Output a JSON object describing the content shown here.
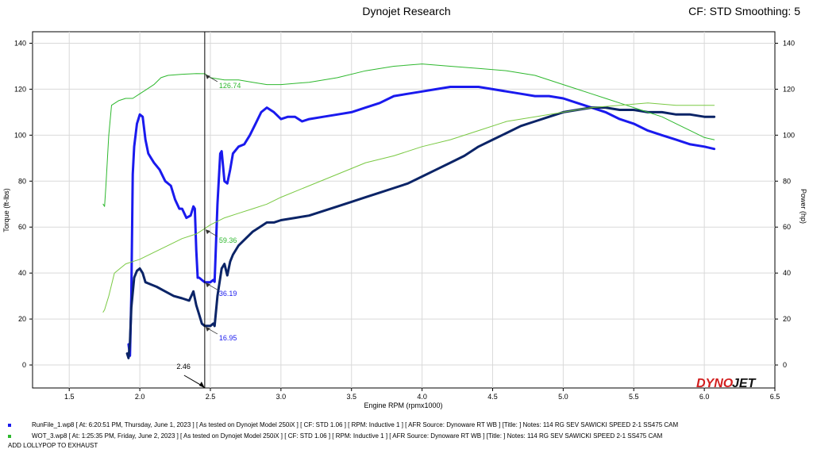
{
  "header": {
    "title": "Dynojet Research",
    "cf_info": "CF: STD Smoothing: 5"
  },
  "chart_data": {
    "type": "line",
    "xlabel": "Engine RPM (rpmx1000)",
    "ylabel_left": "Torque (ft-lbs)",
    "ylabel_right": "Power (hp)",
    "xlim": [
      1.24,
      6.5
    ],
    "ylim": [
      -10,
      145
    ],
    "x_ticks": [
      "1.5",
      "2.0",
      "2.5",
      "3.0",
      "3.5",
      "4.0",
      "4.5",
      "5.0",
      "5.5",
      "6.0",
      "6.5"
    ],
    "y_ticks": [
      "0",
      "20",
      "40",
      "60",
      "80",
      "100",
      "120",
      "140"
    ],
    "cursor": {
      "x": 2.46,
      "label": "2.46"
    },
    "series": [
      {
        "name": "RunFile_1.wp8",
        "role": "torque",
        "color": "#1a1aee",
        "width": 3,
        "x": [
          1.92,
          1.93,
          1.94,
          1.95,
          1.96,
          1.98,
          2.0,
          2.02,
          2.04,
          2.06,
          2.08,
          2.1,
          2.14,
          2.18,
          2.22,
          2.25,
          2.28,
          2.3,
          2.33,
          2.36,
          2.38,
          2.39,
          2.4,
          2.41,
          2.42,
          2.44,
          2.46,
          2.48,
          2.5,
          2.52,
          2.53,
          2.55,
          2.57,
          2.58,
          2.6,
          2.62,
          2.64,
          2.66,
          2.7,
          2.74,
          2.78,
          2.82,
          2.86,
          2.9,
          2.95,
          3.0,
          3.05,
          3.1,
          3.15,
          3.2,
          3.3,
          3.4,
          3.5,
          3.6,
          3.7,
          3.8,
          3.9,
          4.0,
          4.1,
          4.2,
          4.3,
          4.4,
          4.5,
          4.6,
          4.7,
          4.8,
          4.9,
          5.0,
          5.1,
          5.2,
          5.3,
          5.4,
          5.5,
          5.6,
          5.7,
          5.8,
          5.9,
          6.0,
          6.07
        ],
        "y": [
          9,
          4,
          30,
          83,
          95,
          105,
          109,
          108,
          98,
          92,
          90,
          88,
          85,
          80,
          78,
          72,
          68,
          68,
          64,
          65,
          69,
          68,
          50,
          38,
          38,
          37,
          36,
          36,
          36,
          37,
          36.19,
          70,
          92,
          93,
          80,
          79,
          85,
          92,
          95,
          96,
          100,
          105,
          110,
          112,
          110,
          107,
          108,
          108,
          106,
          107,
          108,
          109,
          110,
          112,
          114,
          117,
          118,
          119,
          120,
          121,
          121,
          121,
          120,
          119,
          118,
          117,
          117,
          116,
          114,
          112,
          110,
          107,
          105,
          102,
          100,
          98,
          96,
          95,
          94
        ]
      },
      {
        "name": "RunFile_1.wp8",
        "role": "power",
        "color": "#0b2467",
        "width": 3,
        "x": [
          1.91,
          1.92,
          1.93,
          1.94,
          1.96,
          1.98,
          2.0,
          2.02,
          2.04,
          2.08,
          2.12,
          2.18,
          2.24,
          2.3,
          2.35,
          2.38,
          2.4,
          2.42,
          2.44,
          2.46,
          2.48,
          2.5,
          2.52,
          2.53,
          2.55,
          2.58,
          2.6,
          2.62,
          2.64,
          2.66,
          2.7,
          2.75,
          2.8,
          2.85,
          2.9,
          2.95,
          3.0,
          3.1,
          3.2,
          3.3,
          3.4,
          3.5,
          3.6,
          3.7,
          3.8,
          3.9,
          4.0,
          4.1,
          4.2,
          4.3,
          4.4,
          4.5,
          4.6,
          4.7,
          4.8,
          4.9,
          5.0,
          5.1,
          5.2,
          5.3,
          5.4,
          5.5,
          5.6,
          5.7,
          5.8,
          5.9,
          6.0,
          6.07
        ],
        "y": [
          5,
          3,
          10,
          25,
          38,
          41,
          42,
          40,
          36,
          35,
          34,
          32,
          30,
          29,
          28,
          32,
          26,
          22,
          18,
          17,
          17,
          17,
          18,
          16.95,
          30,
          42,
          44,
          39,
          45,
          48,
          52,
          55,
          58,
          60,
          62,
          62,
          63,
          64,
          65,
          67,
          69,
          71,
          73,
          75,
          77,
          79,
          82,
          85,
          88,
          91,
          95,
          98,
          101,
          104,
          106,
          108,
          110,
          111,
          112,
          112,
          111,
          111,
          110,
          110,
          109,
          109,
          108,
          108
        ]
      },
      {
        "name": "WOT_3.wp8",
        "role": "torque",
        "color": "#2eb82e",
        "width": 1,
        "x": [
          1.74,
          1.75,
          1.76,
          1.78,
          1.8,
          1.85,
          1.9,
          1.95,
          2.0,
          2.05,
          2.1,
          2.15,
          2.2,
          2.3,
          2.4,
          2.46,
          2.5,
          2.6,
          2.7,
          2.8,
          2.9,
          3.0,
          3.2,
          3.4,
          3.6,
          3.8,
          4.0,
          4.2,
          4.4,
          4.6,
          4.8,
          5.0,
          5.1,
          5.2,
          5.3,
          5.4,
          5.5,
          5.6,
          5.7,
          5.8,
          5.9,
          6.0,
          6.07
        ],
        "y": [
          70,
          69,
          78,
          100,
          113,
          115,
          116,
          116,
          118,
          120,
          122,
          125,
          126,
          126.5,
          126.8,
          126.74,
          125,
          124,
          124,
          123,
          122,
          122,
          123,
          125,
          128,
          130,
          131,
          130,
          129,
          128,
          126,
          122,
          120,
          118,
          116,
          114,
          112,
          110,
          108,
          105,
          102,
          99,
          98
        ]
      },
      {
        "name": "WOT_3.wp8",
        "role": "power",
        "color": "#7ac943",
        "width": 1,
        "x": [
          1.74,
          1.75,
          1.78,
          1.82,
          1.86,
          1.9,
          1.95,
          2.0,
          2.1,
          2.2,
          2.3,
          2.4,
          2.46,
          2.5,
          2.6,
          2.7,
          2.8,
          2.9,
          3.0,
          3.2,
          3.4,
          3.6,
          3.8,
          4.0,
          4.2,
          4.4,
          4.6,
          4.8,
          5.0,
          5.2,
          5.4,
          5.6,
          5.8,
          6.0,
          6.07
        ],
        "y": [
          23,
          24,
          30,
          40,
          42,
          44,
          45,
          46,
          49,
          52,
          55,
          57,
          59.36,
          61,
          64,
          66,
          68,
          70,
          73,
          78,
          83,
          88,
          91,
          95,
          98,
          102,
          106,
          108,
          110,
          112,
          113,
          114,
          113,
          113,
          113
        ]
      }
    ],
    "annotations": [
      {
        "x": 2.46,
        "y": 126.74,
        "label": "126.74",
        "color": "#2eb82e"
      },
      {
        "x": 2.46,
        "y": 59.36,
        "label": "59.36",
        "color": "#2eb82e"
      },
      {
        "x": 2.46,
        "y": 36.19,
        "label": "36.19",
        "color": "#1a1aee"
      },
      {
        "x": 2.46,
        "y": 16.95,
        "label": "16.95",
        "color": "#1a1aee"
      }
    ]
  },
  "legend": {
    "items": [
      {
        "text": "RunFile_1.wp8 [ At: 6:20:51 PM, Thursday, June 1, 2023 ] [ As tested on Dynojet Model 250iX ] [ CF: STD 1.06 ] [ RPM: Inductive 1 ] [ AFR Source: Dynoware RT WB ] [Title: ]   Notes: 114 RG SEV SAWICKI SPEED 2-1 SS475 CAM",
        "color": "#1a1aee"
      },
      {
        "text": "WOT_3.wp8 [ At: 1:25:35 PM, Friday, June 2, 2023 ] [ As tested on Dynojet Model 250iX ] [ CF: STD 1.06 ] [ RPM: Inductive 1 ] [ AFR Source: Dynoware RT WB ] [Title: ]   Notes: 114 RG SEV SAWICKI SPEED 2-1 SS475 CAM",
        "color": "#2eb82e"
      }
    ],
    "note": "ADD LOLLYPOP TO EXHAUST"
  },
  "logo": {
    "text": "DYNOJET"
  }
}
